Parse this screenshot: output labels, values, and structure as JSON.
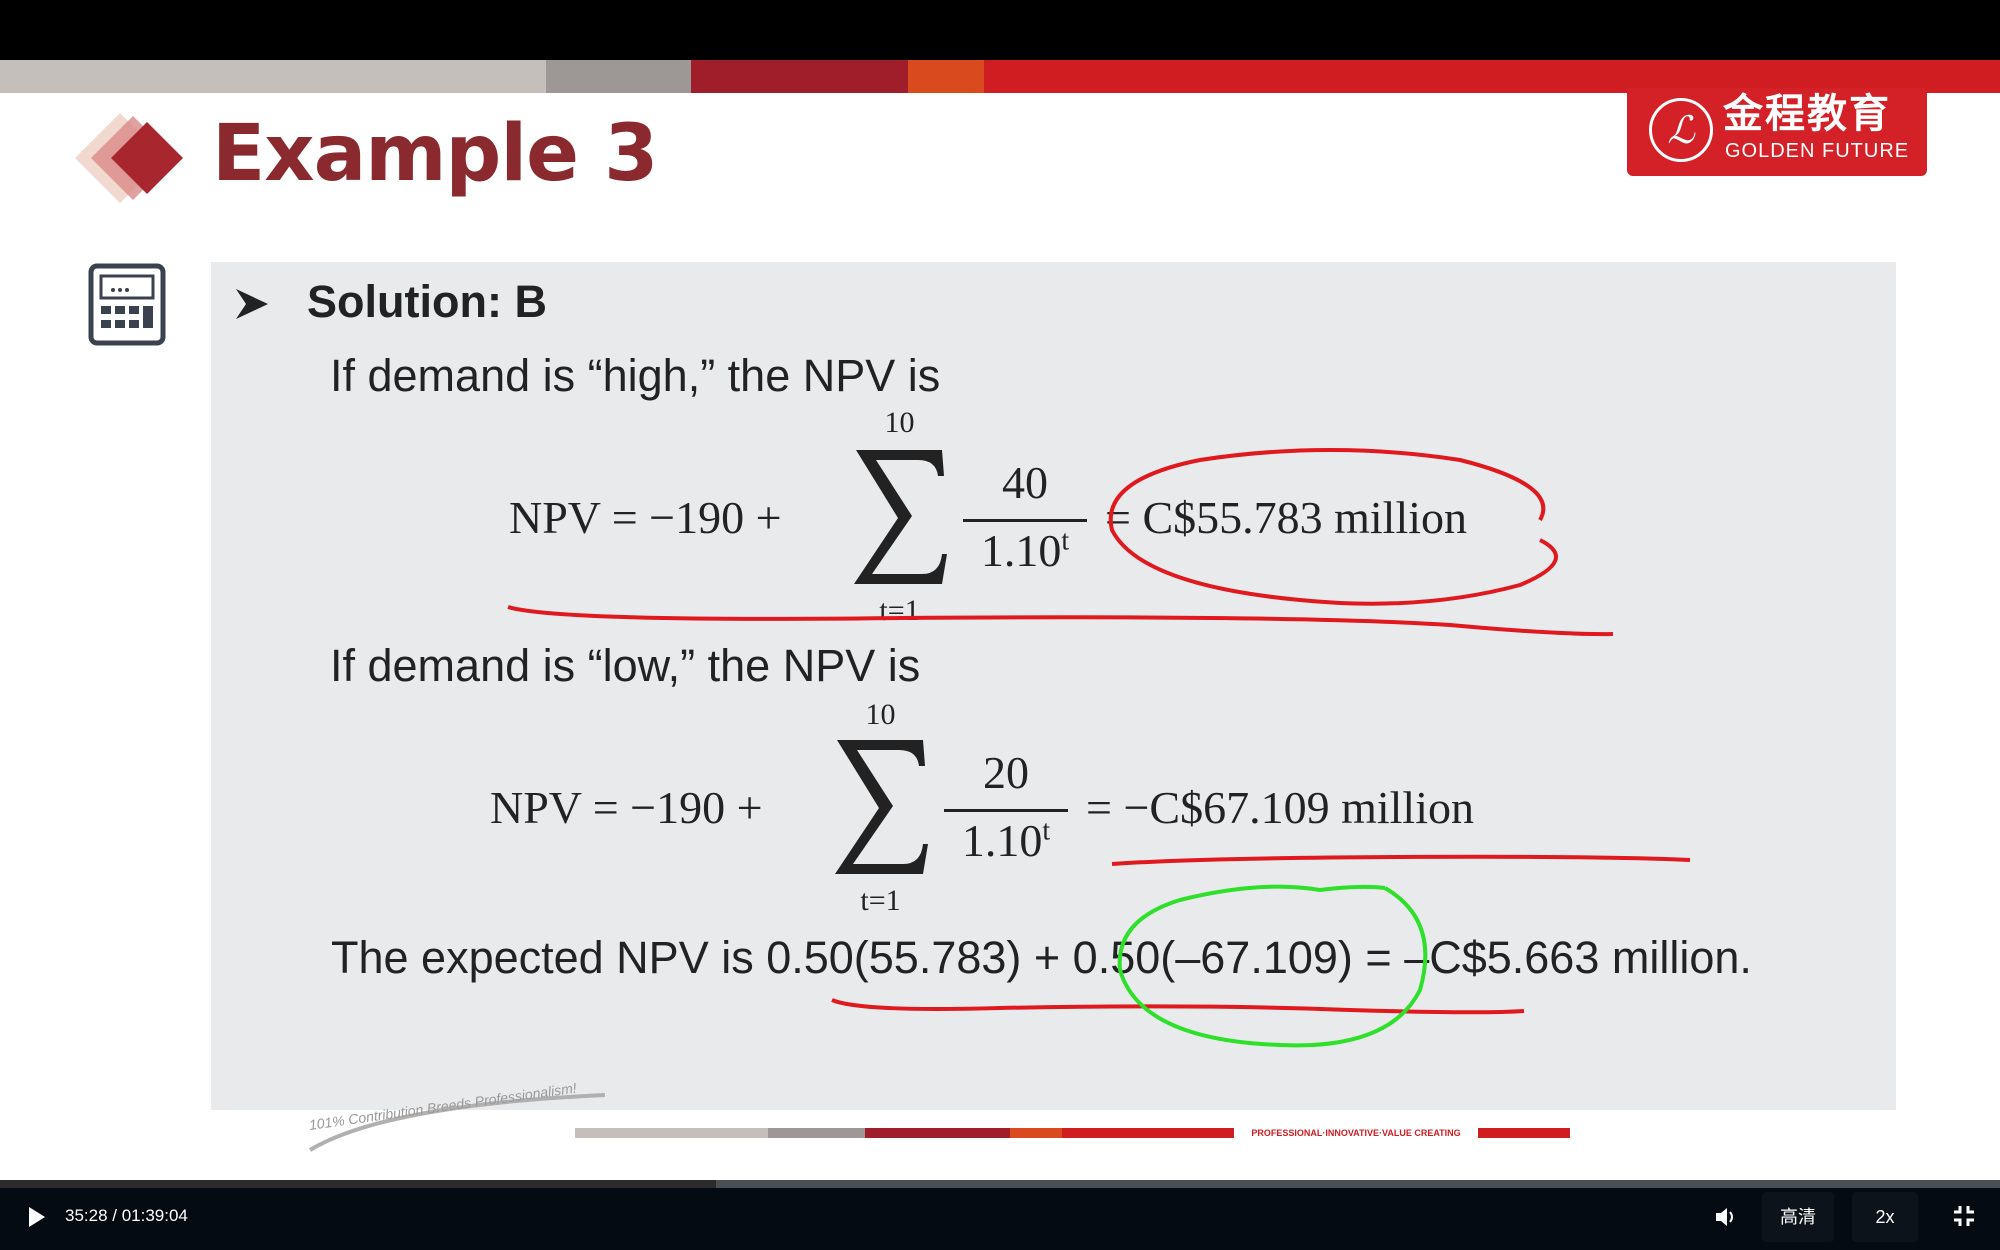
{
  "slide": {
    "title": "Example 3",
    "logo": {
      "cn": "金程教育",
      "en": "GOLDEN FUTURE",
      "seal": "ℒ"
    },
    "solution": "Solution: B",
    "line_high": "If demand is “high,” the NPV is",
    "eq_high": {
      "lhs": "NPV = −190 +",
      "upper": "10",
      "lower": "t=1",
      "numerator": "40",
      "denominator": "1.10",
      "exp": "t",
      "rhs": "= C$55.783 million"
    },
    "line_low": "If demand is “low,” the NPV is",
    "eq_low": {
      "lhs": "NPV = −190 +",
      "upper": "10",
      "lower": "t=1",
      "numerator": "20",
      "denominator": "1.10",
      "exp": "t",
      "rhs": "= −C$67.109 million"
    },
    "expected": "The expected NPV is 0.50(55.783) + 0.50(–67.109) = –C$5.663 million.",
    "footer_slogan": "101% Contribution Breeds Professionalism!",
    "footer_tagline": "PROFESSIONAL·INNOVATIVE·VALUE CREATING"
  },
  "colors": {
    "brand_red": "#d42027",
    "title": "#8b2a2e",
    "annotation_red": "#e0191e",
    "annotation_green": "#2ee02a"
  },
  "player": {
    "time": "35:28 / 01:39:04",
    "progress_percent": 35.8,
    "quality": "高清",
    "speed": "2x",
    "icons": [
      "play-icon",
      "volume-icon",
      "fullscreen-icon"
    ]
  }
}
